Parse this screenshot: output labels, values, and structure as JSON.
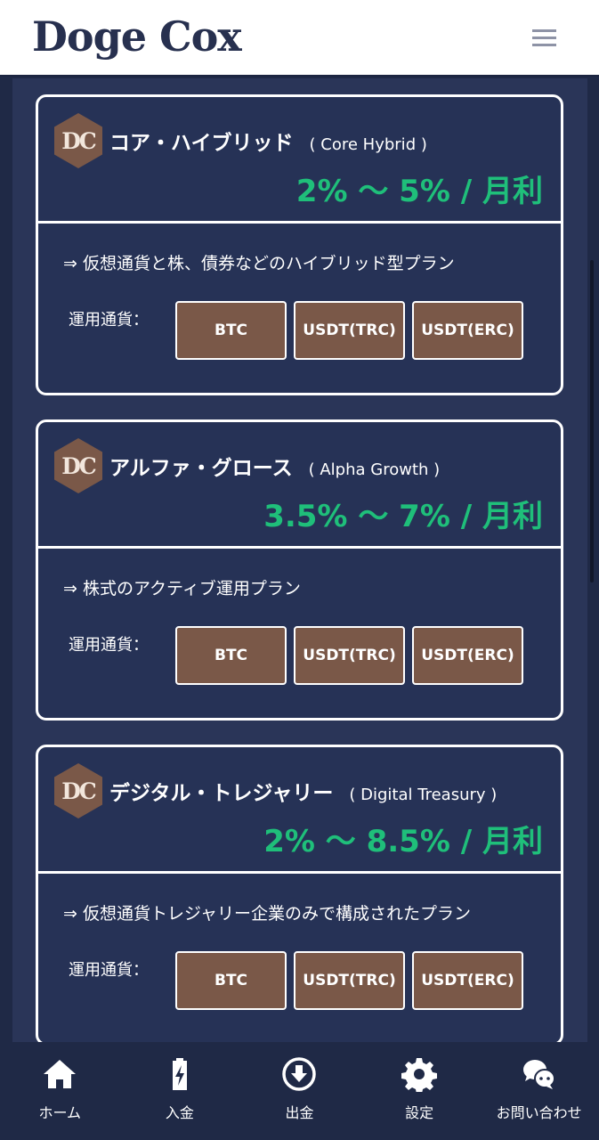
{
  "header": {
    "logo": "Doge Cox",
    "menu_icon": "hamburger-icon"
  },
  "plans": [
    {
      "badge": "DC",
      "name": "コア・ハイブリッド",
      "sub": "( Core Hybrid )",
      "rate": "2% 〜 5% / 月利",
      "desc": "⇒ 仮想通貨と株、債券などのハイブリッド型プラン",
      "currency_label": "運用通貨：",
      "currencies": [
        "BTC",
        "USDT(TRC)",
        "USDT(ERC)"
      ]
    },
    {
      "badge": "DC",
      "name": "アルファ・グロース",
      "sub": "( Alpha Growth )",
      "rate": "3.5% 〜 7% / 月利",
      "desc": "⇒ 株式のアクティブ運用プラン",
      "currency_label": "運用通貨：",
      "currencies": [
        "BTC",
        "USDT(TRC)",
        "USDT(ERC)"
      ]
    },
    {
      "badge": "DC",
      "name": "デジタル・トレジャリー",
      "sub": "( Digital Treasury )",
      "rate": "2% 〜 8.5% / 月利",
      "desc": "⇒ 仮想通貨トレジャリー企業のみで構成されたプラン",
      "currency_label": "運用通貨：",
      "currencies": [
        "BTC",
        "USDT(TRC)",
        "USDT(ERC)"
      ]
    }
  ],
  "nav": [
    {
      "label": "ホーム",
      "icon": "home-icon"
    },
    {
      "label": "入金",
      "icon": "battery-charge-icon"
    },
    {
      "label": "出金",
      "icon": "download-circle-icon"
    },
    {
      "label": "設定",
      "icon": "gear-icon"
    },
    {
      "label": "お問い合わせ",
      "icon": "chat-icon"
    }
  ],
  "colors": {
    "accent_green": "#1fbf7a",
    "brand_brown": "#7a5848",
    "navy": "#263256"
  }
}
